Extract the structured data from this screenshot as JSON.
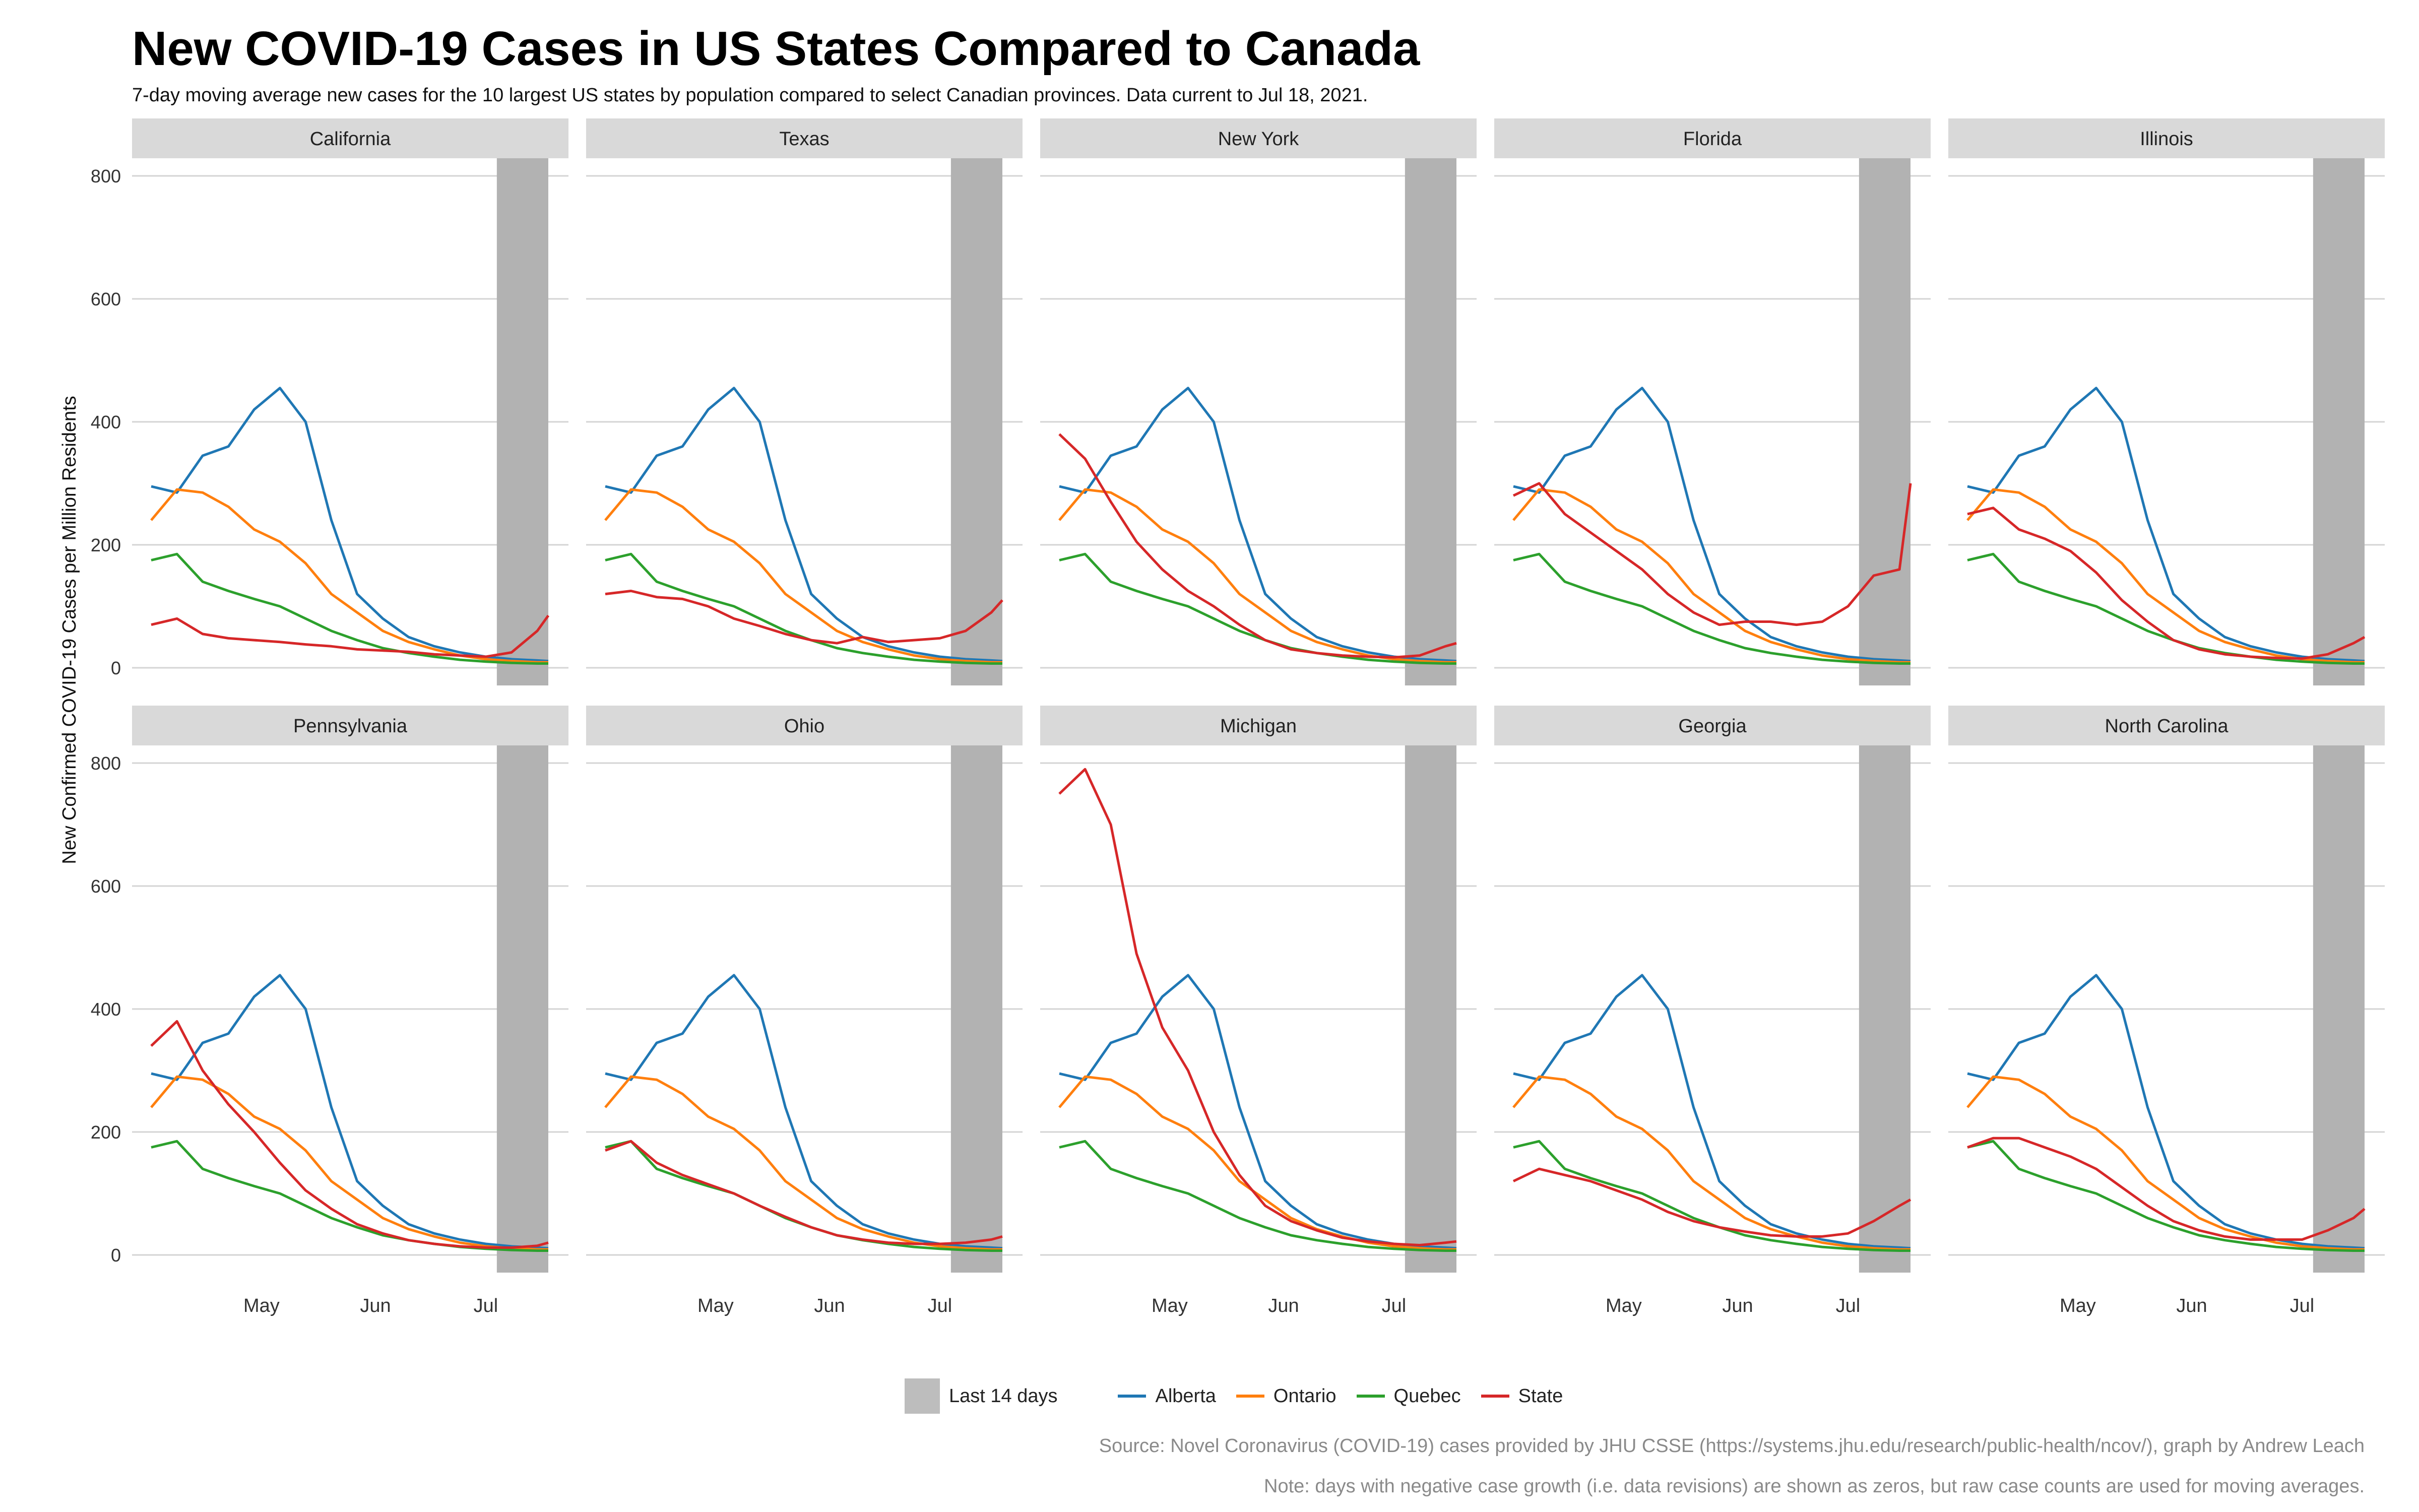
{
  "chart_data": {
    "type": "line",
    "title": "New COVID-19 Cases in US States Compared to Canada",
    "subtitle": "7-day moving average new cases for the 10 largest US states by population compared to select Canadian provinces. Data current to Jul 18, 2021.",
    "ylabel": "New Confirmed COVID-19 Cases per Million Residents",
    "xlabel": "",
    "ylim": [
      0,
      800
    ],
    "yticks": [
      "0",
      "200",
      "400",
      "600",
      "800"
    ],
    "xlim": [
      "2021-04-01",
      "2021-07-18"
    ],
    "xticks": [
      {
        "date": "2021-05-01",
        "label": "May"
      },
      {
        "date": "2021-06-01",
        "label": "Jun"
      },
      {
        "date": "2021-07-01",
        "label": "Jul"
      }
    ],
    "shaded_region": {
      "label": "Last 14 days",
      "start": "2021-07-04",
      "end": "2021-07-18",
      "color": "#b2b2b2"
    },
    "grid": "horizontal",
    "legend_position": "bottom",
    "colors": {
      "Alberta": "#1f77b4",
      "Ontario": "#ff7f0e",
      "Quebec": "#2ca02c",
      "State": "#d62728"
    },
    "legend": [
      {
        "name": "Alberta",
        "color": "#1f77b4"
      },
      {
        "name": "Ontario",
        "color": "#ff7f0e"
      },
      {
        "name": "Quebec",
        "color": "#2ca02c"
      },
      {
        "name": "State",
        "color": "#d62728"
      }
    ],
    "x": [
      "2021-04-01",
      "2021-04-08",
      "2021-04-15",
      "2021-04-22",
      "2021-04-29",
      "2021-05-06",
      "2021-05-13",
      "2021-05-20",
      "2021-05-27",
      "2021-06-03",
      "2021-06-10",
      "2021-06-17",
      "2021-06-24",
      "2021-07-01",
      "2021-07-08",
      "2021-07-15",
      "2021-07-18"
    ],
    "provinces": [
      {
        "name": "Alberta",
        "values": [
          295,
          285,
          345,
          360,
          420,
          455,
          400,
          240,
          120,
          80,
          50,
          35,
          25,
          18,
          14,
          12,
          11
        ]
      },
      {
        "name": "Ontario",
        "values": [
          240,
          290,
          285,
          262,
          225,
          205,
          170,
          120,
          90,
          60,
          42,
          30,
          20,
          14,
          11,
          9,
          9
        ]
      },
      {
        "name": "Quebec",
        "values": [
          175,
          185,
          140,
          125,
          112,
          100,
          80,
          60,
          45,
          32,
          24,
          18,
          13,
          10,
          8,
          7,
          7
        ]
      }
    ],
    "panels": [
      {
        "name": "California",
        "values": [
          70,
          80,
          55,
          48,
          45,
          42,
          38,
          35,
          30,
          28,
          26,
          22,
          20,
          18,
          25,
          60,
          85
        ]
      },
      {
        "name": "Texas",
        "values": [
          120,
          125,
          115,
          112,
          100,
          80,
          68,
          55,
          45,
          40,
          50,
          42,
          45,
          48,
          60,
          90,
          110
        ]
      },
      {
        "name": "New York",
        "values": [
          380,
          340,
          270,
          205,
          160,
          125,
          100,
          70,
          45,
          30,
          24,
          20,
          18,
          17,
          20,
          35,
          40
        ]
      },
      {
        "name": "Florida",
        "values": [
          280,
          300,
          250,
          220,
          190,
          160,
          120,
          90,
          70,
          75,
          75,
          70,
          75,
          100,
          150,
          160,
          300
        ]
      },
      {
        "name": "Illinois",
        "values": [
          250,
          260,
          225,
          210,
          190,
          155,
          110,
          75,
          45,
          30,
          22,
          18,
          16,
          15,
          22,
          40,
          50
        ]
      },
      {
        "name": "Pennsylvania",
        "values": [
          340,
          380,
          300,
          245,
          200,
          150,
          105,
          75,
          50,
          35,
          24,
          18,
          14,
          12,
          12,
          15,
          20
        ]
      },
      {
        "name": "Ohio",
        "values": [
          170,
          185,
          150,
          130,
          115,
          100,
          80,
          62,
          45,
          32,
          25,
          20,
          18,
          18,
          20,
          25,
          30
        ]
      },
      {
        "name": "Michigan",
        "values": [
          750,
          790,
          700,
          490,
          370,
          300,
          200,
          130,
          80,
          55,
          40,
          28,
          22,
          18,
          16,
          20,
          22
        ]
      },
      {
        "name": "Georgia",
        "values": [
          120,
          140,
          130,
          120,
          105,
          90,
          70,
          55,
          45,
          38,
          32,
          30,
          30,
          35,
          55,
          80,
          90
        ]
      },
      {
        "name": "North Carolina",
        "values": [
          175,
          190,
          190,
          175,
          160,
          140,
          110,
          80,
          55,
          40,
          30,
          25,
          25,
          25,
          40,
          60,
          75
        ]
      }
    ]
  },
  "source": "Source: Novel Coronavirus (COVID-19) cases provided by JHU CSSE (https://systems.jhu.edu/research/public-health/ncov/), graph by Andrew Leach",
  "note": "Note: days with negative case growth (i.e. data revisions) are shown as zeros, but raw case counts are used for moving averages."
}
